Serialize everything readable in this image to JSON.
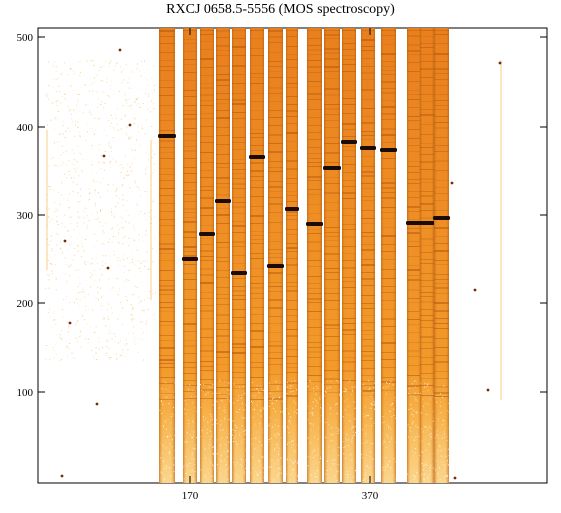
{
  "title": "RXCJ 0658.5-5556 (MOS spectroscopy)",
  "axes": {
    "x_tick_labels": [
      "170",
      "370"
    ],
    "y_tick_labels": [
      "500",
      "400",
      "300",
      "200",
      "100"
    ]
  },
  "colors": {
    "background": "#ffffff",
    "slit_light": "#f39a2a",
    "slit_mid": "#e07818",
    "slit_dark": "#b45a10",
    "emission_line": "#1a0c04",
    "speckle": "#f4b94e"
  },
  "image": {
    "kind": "2D MOS spectra image with vertical slit spectra (orange) and dark sky lines"
  }
}
